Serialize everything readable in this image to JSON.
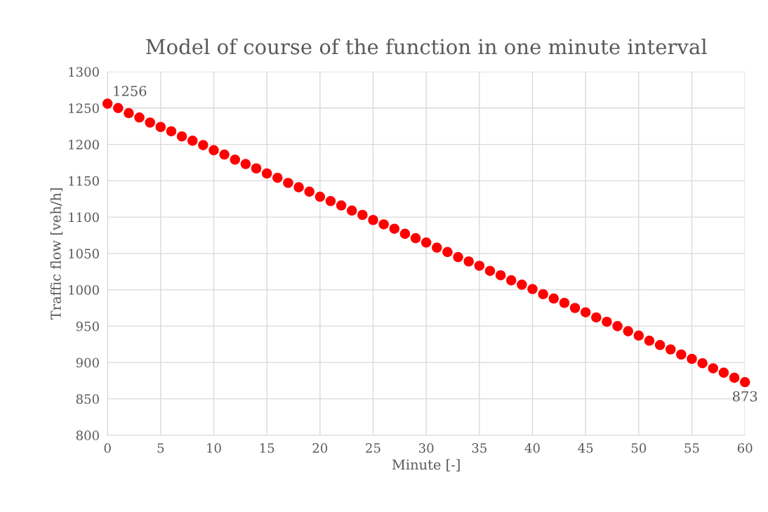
{
  "chart_data": {
    "type": "scatter",
    "title": "Model of course of the function in one minute interval",
    "xlabel": "Minute [-]",
    "ylabel": "Traffic flow [veh/h]",
    "x": [
      0,
      1,
      2,
      3,
      4,
      5,
      6,
      7,
      8,
      9,
      10,
      11,
      12,
      13,
      14,
      15,
      16,
      17,
      18,
      19,
      20,
      21,
      22,
      23,
      24,
      25,
      26,
      27,
      28,
      29,
      30,
      31,
      32,
      33,
      34,
      35,
      36,
      37,
      38,
      39,
      40,
      41,
      42,
      43,
      44,
      45,
      46,
      47,
      48,
      49,
      50,
      51,
      52,
      53,
      54,
      55,
      56,
      57,
      58,
      59,
      60
    ],
    "series": [
      {
        "color": "#ff0000",
        "values": [
          1256,
          1250,
          1243,
          1237,
          1230,
          1224,
          1218,
          1211,
          1205,
          1199,
          1192,
          1186,
          1179,
          1173,
          1167,
          1160,
          1154,
          1147,
          1141,
          1135,
          1128,
          1122,
          1116,
          1109,
          1103,
          1096,
          1090,
          1084,
          1077,
          1071,
          1065,
          1058,
          1052,
          1045,
          1039,
          1033,
          1026,
          1020,
          1013,
          1007,
          1001,
          994,
          988,
          982,
          975,
          969,
          962,
          956,
          950,
          943,
          937,
          930,
          924,
          918,
          911,
          905,
          899,
          892,
          886,
          879,
          873
        ],
        "value_labels": [
          "1256",
          null,
          null,
          null,
          null,
          null,
          null,
          null,
          null,
          null,
          null,
          null,
          null,
          null,
          null,
          null,
          null,
          null,
          null,
          null,
          null,
          null,
          null,
          null,
          null,
          null,
          null,
          null,
          null,
          null,
          null,
          null,
          null,
          null,
          null,
          null,
          null,
          null,
          null,
          null,
          null,
          null,
          null,
          null,
          null,
          null,
          null,
          null,
          null,
          null,
          null,
          null,
          null,
          null,
          null,
          null,
          null,
          null,
          null,
          null,
          "873"
        ]
      }
    ],
    "xlim": [
      0,
      60
    ],
    "xticks": [
      0,
      5,
      10,
      15,
      20,
      25,
      30,
      35,
      40,
      45,
      50,
      55,
      60
    ],
    "ylim": [
      800,
      1300
    ],
    "yticks": [
      800,
      850,
      900,
      950,
      1000,
      1050,
      1100,
      1150,
      1200,
      1250,
      1300
    ],
    "grid": true,
    "marker": "circle"
  }
}
